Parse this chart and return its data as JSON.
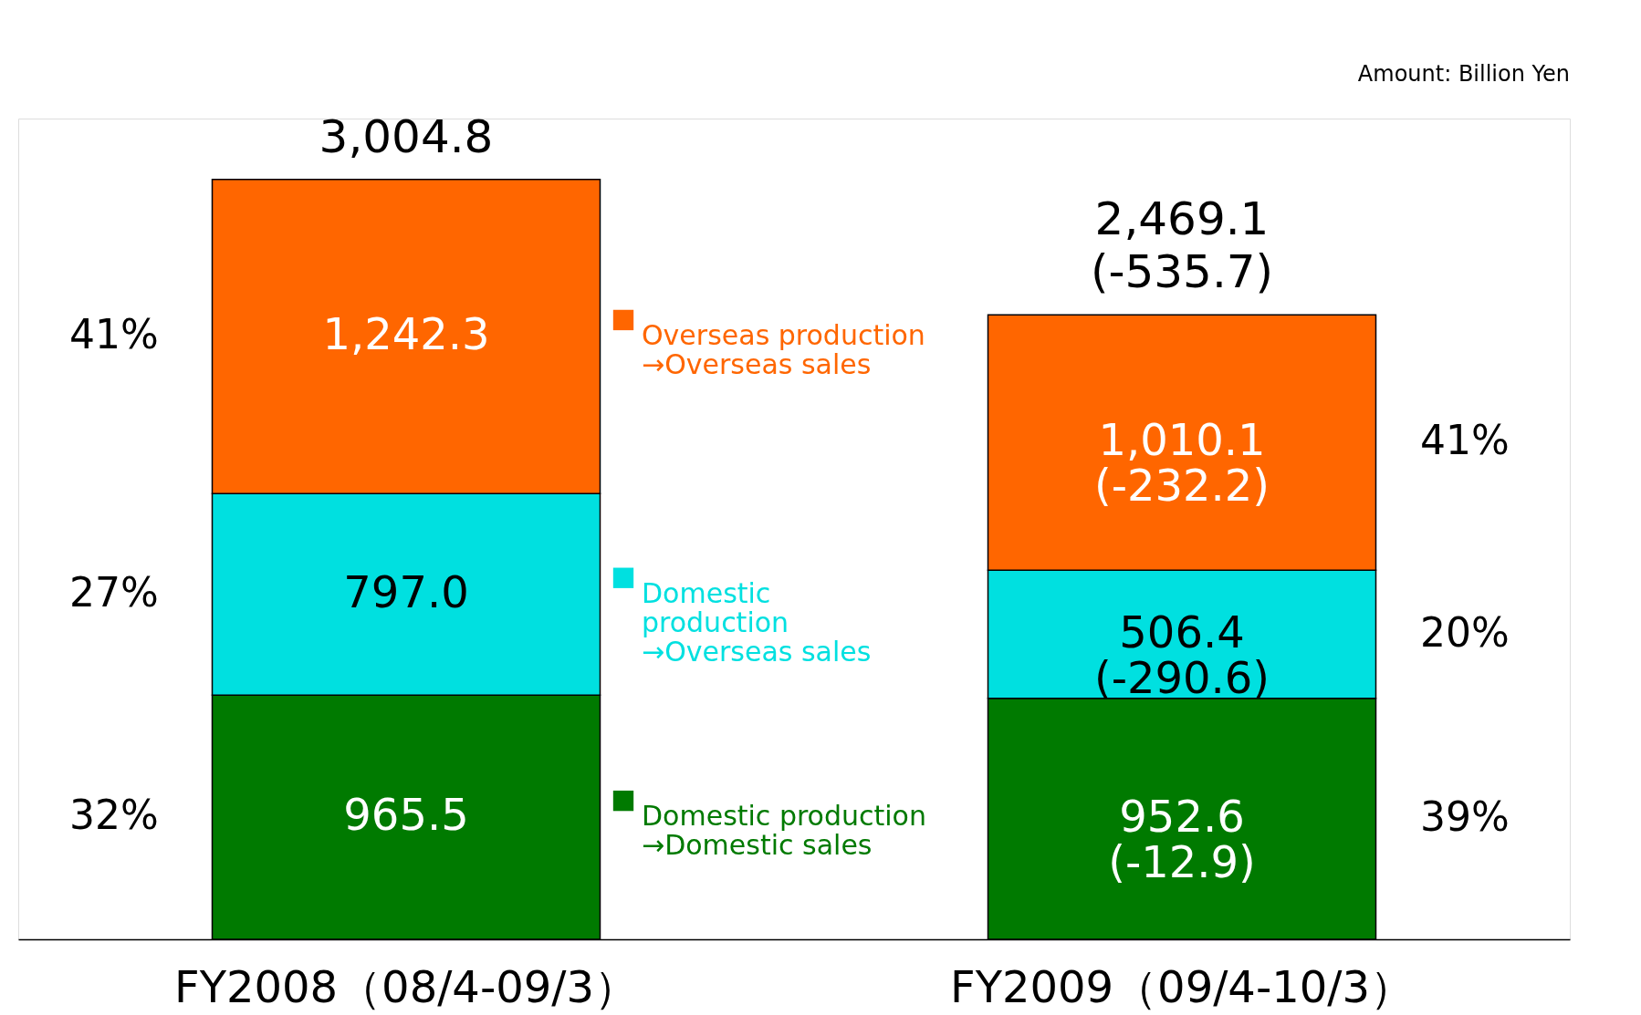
{
  "chart_data": {
    "type": "bar",
    "stacked": true,
    "categories": [
      "FY2008（08/4-09/3）",
      "FY2009（09/4-10/3）"
    ],
    "series": [
      {
        "name": "Domestic production\n→Domestic sales",
        "color": "#007a00",
        "values": [
          965.5,
          952.6
        ],
        "value_labels": [
          "965.5",
          "952.6\n(-12.9)"
        ]
      },
      {
        "name": "Domestic\nproduction\n→Overseas sales",
        "color": "#00e0e0",
        "values": [
          797.0,
          506.4
        ],
        "value_labels": [
          "797.0",
          "506.4\n(-290.6)"
        ]
      },
      {
        "name": "Overseas production\n→Overseas sales",
        "color": "#ff6600",
        "values": [
          1242.3,
          1010.1
        ],
        "value_labels": [
          "1,242.3",
          "1,010.1\n(-232.2)"
        ]
      }
    ],
    "totals": [
      "3,004.8",
      "2,469.1\n(-535.7)"
    ],
    "annotations": [
      "Amount: Billion Yen",
      "41%",
      "27%",
      "32%",
      "41%",
      "20%",
      "39%"
    ],
    "grid": false,
    "legend": "center"
  }
}
